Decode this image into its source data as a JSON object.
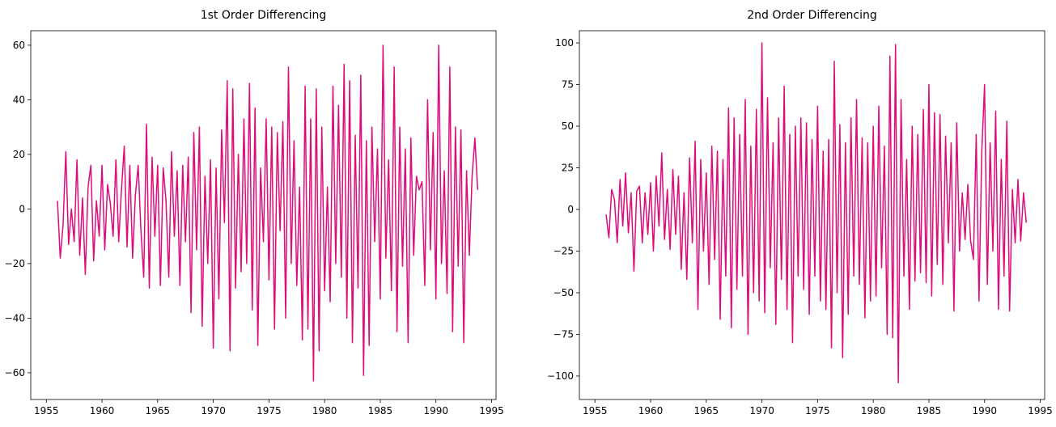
{
  "chart_data": [
    {
      "type": "line",
      "title": "1st Order Differencing",
      "color": "#dc0c7d",
      "xlim": [
        1953.6,
        1995.4
      ],
      "ylim": [
        -69.8,
        65.3
      ],
      "xticks": [
        1955,
        1960,
        1965,
        1970,
        1975,
        1980,
        1985,
        1990,
        1995
      ],
      "yticks": [
        {
          "value": -60,
          "label": "−60"
        },
        {
          "value": -40,
          "label": "−40"
        },
        {
          "value": -20,
          "label": "−20"
        },
        0,
        20,
        40,
        60
      ],
      "x": [
        1956,
        1956.25,
        1956.5,
        1956.75,
        1957,
        1957.25,
        1957.5,
        1957.75,
        1958,
        1958.25,
        1958.5,
        1958.75,
        1959,
        1959.25,
        1959.5,
        1959.75,
        1960,
        1960.25,
        1960.5,
        1960.75,
        1961,
        1961.25,
        1961.5,
        1961.75,
        1962,
        1962.25,
        1962.5,
        1962.75,
        1963,
        1963.25,
        1963.5,
        1963.75,
        1964,
        1964.25,
        1964.5,
        1964.75,
        1965,
        1965.25,
        1965.5,
        1965.75,
        1966,
        1966.25,
        1966.5,
        1966.75,
        1967,
        1967.25,
        1967.5,
        1967.75,
        1968,
        1968.25,
        1968.5,
        1968.75,
        1969,
        1969.25,
        1969.5,
        1969.75,
        1970,
        1970.25,
        1970.5,
        1970.75,
        1971,
        1971.25,
        1971.5,
        1971.75,
        1972,
        1972.25,
        1972.5,
        1972.75,
        1973,
        1973.25,
        1973.5,
        1973.75,
        1974,
        1974.25,
        1974.5,
        1974.75,
        1975,
        1975.25,
        1975.5,
        1975.75,
        1976,
        1976.25,
        1976.5,
        1976.75,
        1977,
        1977.25,
        1977.5,
        1977.75,
        1978,
        1978.25,
        1978.5,
        1978.75,
        1979,
        1979.25,
        1979.5,
        1979.75,
        1980,
        1980.25,
        1980.5,
        1980.75,
        1981,
        1981.25,
        1981.5,
        1981.75,
        1982,
        1982.25,
        1982.5,
        1982.75,
        1983,
        1983.25,
        1983.5,
        1983.75,
        1984,
        1984.25,
        1984.5,
        1984.75,
        1985,
        1985.25,
        1985.5,
        1985.75,
        1986,
        1986.25,
        1986.5,
        1986.75,
        1987,
        1987.25,
        1987.5,
        1987.75,
        1988,
        1988.25,
        1988.5,
        1988.75,
        1989,
        1989.25,
        1989.5,
        1989.75,
        1990,
        1990.25,
        1990.5,
        1990.75,
        1991,
        1991.25,
        1991.5,
        1991.75,
        1992,
        1992.25,
        1992.5,
        1992.75,
        1993,
        1993.25,
        1993.5,
        1993.75
      ],
      "values": [
        3,
        -18,
        -6,
        21,
        -13,
        0,
        -12,
        18,
        -17,
        4,
        -24,
        8,
        16,
        -19,
        3,
        -10,
        16,
        -15,
        9,
        2,
        -10,
        18,
        -12,
        7,
        23,
        -14,
        16,
        -18,
        5,
        16,
        -8,
        -25,
        31,
        -29,
        19,
        -10,
        16,
        -28,
        15,
        3,
        -25,
        21,
        -10,
        14,
        -28,
        16,
        -12,
        19,
        -38,
        28,
        -15,
        30,
        -43,
        12,
        -20,
        18,
        -51,
        15,
        -33,
        29,
        -5,
        47,
        -52,
        44,
        -29,
        20,
        -23,
        33,
        -20,
        46,
        -37,
        37,
        -50,
        15,
        -12,
        33,
        -26,
        30,
        -44,
        28,
        -8,
        32,
        -40,
        52,
        -20,
        25,
        -28,
        8,
        -48,
        45,
        -44,
        33,
        -63,
        44,
        -52,
        30,
        -30,
        8,
        -34,
        45,
        -20,
        38,
        -25,
        53,
        -40,
        47,
        -49,
        27,
        -29,
        49,
        -61,
        25,
        -50,
        30,
        -12,
        22,
        -33,
        60,
        -18,
        18,
        -30,
        52,
        -45,
        30,
        -21,
        22,
        -49,
        26,
        -17,
        12,
        7,
        10,
        -28,
        40,
        -15,
        28,
        -33,
        60,
        -20,
        14,
        -31,
        52,
        -45,
        30,
        -21,
        29,
        -49,
        14,
        -17,
        12,
        26,
        7
      ]
    },
    {
      "type": "line",
      "title": "2nd Order Differencing",
      "color": "#dc0c7d",
      "xlim": [
        1953.6,
        1995.4
      ],
      "ylim": [
        -114.1,
        107.3
      ],
      "xticks": [
        1955,
        1960,
        1965,
        1970,
        1975,
        1980,
        1985,
        1990,
        1995
      ],
      "yticks": [
        {
          "value": -100,
          "label": "−100"
        },
        {
          "value": -75,
          "label": "−75"
        },
        {
          "value": -50,
          "label": "−50"
        },
        {
          "value": -25,
          "label": "−25"
        },
        0,
        25,
        50,
        75,
        100
      ],
      "x": [
        1956,
        1956.25,
        1956.5,
        1956.75,
        1957,
        1957.25,
        1957.5,
        1957.75,
        1958,
        1958.25,
        1958.5,
        1958.75,
        1959,
        1959.25,
        1959.5,
        1959.75,
        1960,
        1960.25,
        1960.5,
        1960.75,
        1961,
        1961.25,
        1961.5,
        1961.75,
        1962,
        1962.25,
        1962.5,
        1962.75,
        1963,
        1963.25,
        1963.5,
        1963.75,
        1964,
        1964.25,
        1964.5,
        1964.75,
        1965,
        1965.25,
        1965.5,
        1965.75,
        1966,
        1966.25,
        1966.5,
        1966.75,
        1967,
        1967.25,
        1967.5,
        1967.75,
        1968,
        1968.25,
        1968.5,
        1968.75,
        1969,
        1969.25,
        1969.5,
        1969.75,
        1970,
        1970.25,
        1970.5,
        1970.75,
        1971,
        1971.25,
        1971.5,
        1971.75,
        1972,
        1972.25,
        1972.5,
        1972.75,
        1973,
        1973.25,
        1973.5,
        1973.75,
        1974,
        1974.25,
        1974.5,
        1974.75,
        1975,
        1975.25,
        1975.5,
        1975.75,
        1976,
        1976.25,
        1976.5,
        1976.75,
        1977,
        1977.25,
        1977.5,
        1977.75,
        1978,
        1978.25,
        1978.5,
        1978.75,
        1979,
        1979.25,
        1979.5,
        1979.75,
        1980,
        1980.25,
        1980.5,
        1980.75,
        1981,
        1981.25,
        1981.5,
        1981.75,
        1982,
        1982.25,
        1982.5,
        1982.75,
        1983,
        1983.25,
        1983.5,
        1983.75,
        1984,
        1984.25,
        1984.5,
        1984.75,
        1985,
        1985.25,
        1985.5,
        1985.75,
        1986,
        1986.25,
        1986.5,
        1986.75,
        1987,
        1987.25,
        1987.5,
        1987.75,
        1988,
        1988.25,
        1988.5,
        1988.75,
        1989,
        1989.25,
        1989.5,
        1989.75,
        1990,
        1990.25,
        1990.5,
        1990.75,
        1991,
        1991.25,
        1991.5,
        1991.75,
        1992,
        1992.25,
        1992.5,
        1992.75,
        1993,
        1993.25,
        1993.5,
        1993.75
      ],
      "values": [
        -3,
        -17,
        12,
        6,
        -20,
        18,
        -10,
        22,
        -14,
        10,
        -37,
        11,
        14,
        -20,
        10,
        -15,
        16,
        -25,
        20,
        -10,
        34,
        -18,
        12,
        -24,
        24,
        -15,
        20,
        -36,
        10,
        -42,
        31,
        -20,
        41,
        -60,
        30,
        -25,
        22,
        -45,
        38,
        -30,
        35,
        -66,
        30,
        -40,
        61,
        -71,
        55,
        -48,
        45,
        -40,
        66,
        -75,
        38,
        -50,
        60,
        -55,
        100,
        -62,
        67,
        -35,
        40,
        -69,
        55,
        -42,
        74,
        -60,
        45,
        -80,
        50,
        -40,
        55,
        -48,
        52,
        -63,
        42,
        -40,
        62,
        -55,
        35,
        -60,
        42,
        -83,
        89,
        -50,
        51,
        -89,
        40,
        -63,
        55,
        -40,
        66,
        -45,
        43,
        -65,
        40,
        -55,
        50,
        -52,
        62,
        -35,
        38,
        -75,
        92,
        -77,
        99,
        -104,
        66,
        -40,
        30,
        -60,
        50,
        -43,
        45,
        -38,
        60,
        -44,
        75,
        -52,
        58,
        -33,
        57,
        -45,
        44,
        -20,
        40,
        -61,
        52,
        -25,
        10,
        -18,
        15,
        -19,
        -30,
        45,
        -55,
        35,
        75,
        -45,
        40,
        -25,
        59,
        -60,
        30,
        -40,
        53,
        -61,
        12,
        -20,
        18,
        -19,
        10,
        -8
      ]
    }
  ]
}
